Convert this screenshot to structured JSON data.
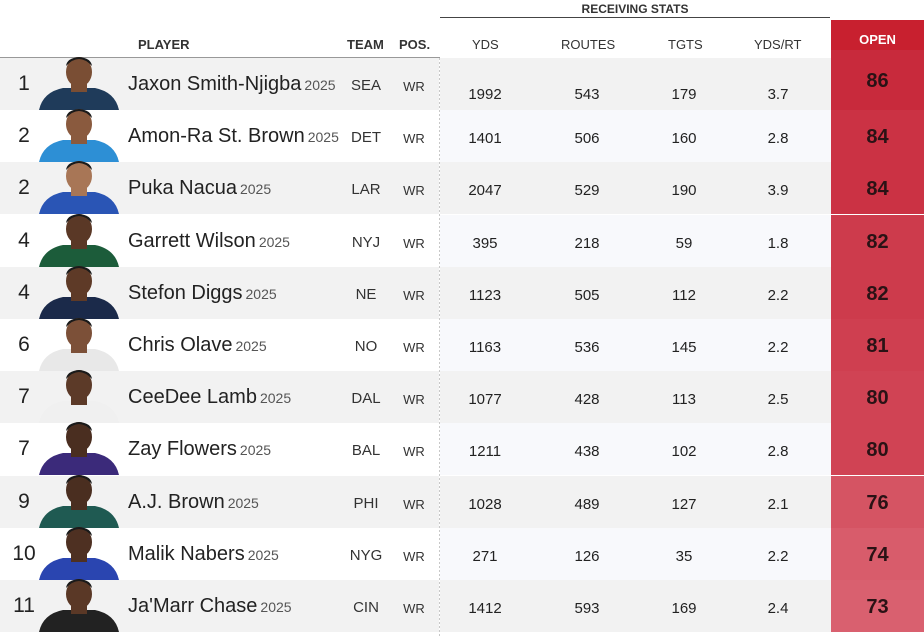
{
  "group_header": "RECEIVING STATS",
  "headers": {
    "player": "PLAYER",
    "team": "TEAM",
    "pos": "POS.",
    "yds": "YDS",
    "routes": "ROUTES",
    "tgts": "TGTS",
    "yds_rt": "YDS/RT",
    "open": "OPEN"
  },
  "colors": {
    "open_header": "#c8202f",
    "open_scale_high": "#c82a3c",
    "open_scale_low": "#d9606f"
  },
  "players": [
    {
      "rank": "1",
      "name": "Jaxon Smith-Njigba",
      "year": "2025",
      "team": "SEA",
      "pos": "WR",
      "yds": "1992",
      "routes": "543",
      "tgts": "179",
      "yds_rt": "3.7",
      "open": "86",
      "jersey": "#1f3b5a",
      "skin": "#7a4e34"
    },
    {
      "rank": "2",
      "name": "Amon-Ra St. Brown",
      "year": "2025",
      "team": "DET",
      "pos": "WR",
      "yds": "1401",
      "routes": "506",
      "tgts": "160",
      "yds_rt": "2.8",
      "open": "84",
      "jersey": "#2d8fd5",
      "skin": "#8a5a3e"
    },
    {
      "rank": "2",
      "name": "Puka Nacua",
      "year": "2025",
      "team": "LAR",
      "pos": "WR",
      "yds": "2047",
      "routes": "529",
      "tgts": "190",
      "yds_rt": "3.9",
      "open": "84",
      "jersey": "#2a55b5",
      "skin": "#a87656"
    },
    {
      "rank": "4",
      "name": "Garrett Wilson",
      "year": "2025",
      "team": "NYJ",
      "pos": "WR",
      "yds": "395",
      "routes": "218",
      "tgts": "59",
      "yds_rt": "1.8",
      "open": "82",
      "jersey": "#1c5c3a",
      "skin": "#5a3826"
    },
    {
      "rank": "4",
      "name": "Stefon Diggs",
      "year": "2025",
      "team": "NE",
      "pos": "WR",
      "yds": "1123",
      "routes": "505",
      "tgts": "112",
      "yds_rt": "2.2",
      "open": "82",
      "jersey": "#1b2a4a",
      "skin": "#5e3a27"
    },
    {
      "rank": "6",
      "name": "Chris Olave",
      "year": "2025",
      "team": "NO",
      "pos": "WR",
      "yds": "1163",
      "routes": "536",
      "tgts": "145",
      "yds_rt": "2.2",
      "open": "81",
      "jersey": "#e8e8e8",
      "skin": "#7c5038"
    },
    {
      "rank": "7",
      "name": "CeeDee Lamb",
      "year": "2025",
      "team": "DAL",
      "pos": "WR",
      "yds": "1077",
      "routes": "428",
      "tgts": "113",
      "yds_rt": "2.5",
      "open": "80",
      "jersey": "#f0f0f0",
      "skin": "#5c3a28"
    },
    {
      "rank": "7",
      "name": "Zay Flowers",
      "year": "2025",
      "team": "BAL",
      "pos": "WR",
      "yds": "1211",
      "routes": "438",
      "tgts": "102",
      "yds_rt": "2.8",
      "open": "80",
      "jersey": "#3b2a7a",
      "skin": "#4a2e20"
    },
    {
      "rank": "9",
      "name": "A.J. Brown",
      "year": "2025",
      "team": "PHI",
      "pos": "WR",
      "yds": "1028",
      "routes": "489",
      "tgts": "127",
      "yds_rt": "2.1",
      "open": "76",
      "jersey": "#1f5a52",
      "skin": "#4a2e20"
    },
    {
      "rank": "10",
      "name": "Malik Nabers",
      "year": "2025",
      "team": "NYG",
      "pos": "WR",
      "yds": "271",
      "routes": "126",
      "tgts": "35",
      "yds_rt": "2.2",
      "open": "74",
      "jersey": "#2a45b0",
      "skin": "#4e3022"
    },
    {
      "rank": "11",
      "name": "Ja'Marr Chase",
      "year": "2025",
      "team": "CIN",
      "pos": "WR",
      "yds": "1412",
      "routes": "593",
      "tgts": "169",
      "yds_rt": "2.4",
      "open": "73",
      "jersey": "#222222",
      "skin": "#5a3826"
    }
  ]
}
